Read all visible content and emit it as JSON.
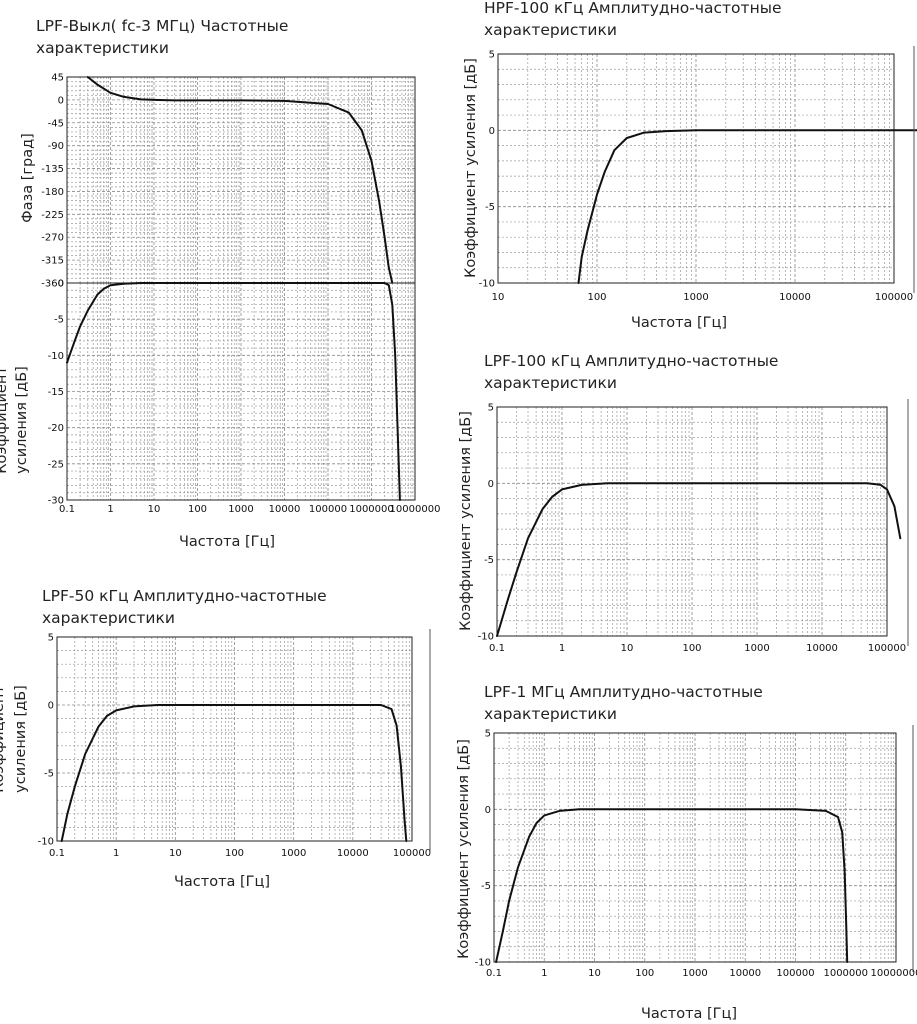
{
  "chart_data": [
    {
      "id": "lpf_off",
      "type": "line",
      "title_lines": [
        "LPF-Выкл( fc-3 МГц) Частотные",
        "характеристики"
      ],
      "xlabel": "Частота [Гц]",
      "x_log": true,
      "x_ticks": [
        "0.1",
        "1",
        "10",
        "100",
        "1000",
        "10000",
        "100000",
        "1000000",
        "10000000"
      ],
      "panels": [
        {
          "ylabel_lines": [
            "Фаза [град]"
          ],
          "ylim": [
            -360,
            45
          ],
          "y_ticks": [
            "45",
            "0",
            "-45",
            "-90",
            "-135",
            "-180",
            "-225",
            "-270",
            "-315",
            "-360"
          ],
          "series": [
            {
              "x": [
                0.3,
                0.5,
                1,
                2,
                5,
                10,
                30,
                100,
                1000,
                10000,
                100000,
                300000,
                600000,
                1000000,
                1500000,
                2000000,
                2500000,
                3000000
              ],
              "y": [
                45,
                30,
                14,
                6,
                1,
                0,
                -1,
                -1,
                -1,
                -2,
                -8,
                -25,
                -60,
                -120,
                -200,
                -270,
                -330,
                -360
              ]
            }
          ]
        },
        {
          "ylabel_lines": [
            "Коэффициент",
            "усиления [дБ]"
          ],
          "ylim": [
            -30,
            0
          ],
          "y_ticks": [
            "0",
            "-5",
            "-10",
            "-15",
            "-20",
            "-25",
            "-30"
          ],
          "series": [
            {
              "x": [
                0.1,
                0.15,
                0.2,
                0.3,
                0.5,
                0.7,
                1,
                2,
                5,
                10,
                100,
                1000,
                100000,
                1000000,
                2000000,
                2500000,
                3000000,
                3500000,
                4500000
              ],
              "y": [
                -11,
                -8,
                -6,
                -3.8,
                -1.6,
                -0.8,
                -0.3,
                -0.1,
                0,
                0,
                0,
                0,
                0,
                0,
                0,
                -0.3,
                -3,
                -10,
                -30
              ]
            }
          ]
        }
      ]
    },
    {
      "id": "hpf_100k",
      "type": "line",
      "title_lines": [
        "HPF-100 кГц Амплитудно-частотные",
        "характеристики"
      ],
      "xlabel": "Частота [Гц]",
      "x_log": true,
      "x_ticks": [
        "10",
        "100",
        "1000",
        "10000",
        "100000"
      ],
      "panels": [
        {
          "ylabel_lines": [
            "Коэффициент усиления [дБ]"
          ],
          "ylim": [
            -10,
            5
          ],
          "y_ticks": [
            "5",
            "0",
            "-5",
            "-10"
          ],
          "series": [
            {
              "x": [
                65,
                70,
                80,
                100,
                120,
                150,
                200,
                300,
                500,
                1000,
                10000,
                100000,
                200000
              ],
              "y": [
                -10,
                -8.3,
                -6.6,
                -4.2,
                -2.7,
                -1.3,
                -0.5,
                -0.15,
                -0.05,
                0,
                0,
                0,
                0
              ]
            }
          ]
        }
      ]
    },
    {
      "id": "lpf_100k",
      "type": "line",
      "title_lines": [
        "LPF-100 кГц Амплитудно-частотные",
        "характеристики"
      ],
      "xlabel": "",
      "x_log": true,
      "x_ticks": [
        "0.1",
        "1",
        "10",
        "100",
        "1000",
        "10000",
        "100000"
      ],
      "panels": [
        {
          "ylabel_lines": [
            "Коэффициент усиления [дБ]"
          ],
          "ylim": [
            -10,
            5
          ],
          "y_ticks": [
            "5",
            "0",
            "-5",
            "-10"
          ],
          "series": [
            {
              "x": [
                0.1,
                0.15,
                0.2,
                0.3,
                0.5,
                0.7,
                1,
                2,
                5,
                10,
                100,
                1000,
                10000,
                50000,
                80000,
                100000,
                130000,
                160000
              ],
              "y": [
                -10,
                -7.5,
                -5.8,
                -3.6,
                -1.7,
                -0.9,
                -0.4,
                -0.1,
                0,
                0,
                0,
                0,
                0,
                0,
                -0.1,
                -0.4,
                -1.5,
                -3.6
              ]
            }
          ]
        }
      ]
    },
    {
      "id": "lpf_50k",
      "type": "line",
      "title_lines": [
        "LPF-50 кГц Амплитудно-частотные",
        "характеристики"
      ],
      "xlabel": "Частота [Гц]",
      "x_log": true,
      "x_ticks": [
        "0.1",
        "1",
        "10",
        "100",
        "1000",
        "10000",
        "100000"
      ],
      "panels": [
        {
          "ylabel_lines": [
            "Коэффициент",
            "усиления [дБ]"
          ],
          "ylim": [
            -10,
            5
          ],
          "y_ticks": [
            "5",
            "0",
            "-5",
            "-10"
          ],
          "series": [
            {
              "x": [
                0.12,
                0.15,
                0.2,
                0.3,
                0.5,
                0.7,
                1,
                2,
                5,
                10,
                100,
                1000,
                10000,
                30000,
                45000,
                55000,
                65000,
                75000,
                80000
              ],
              "y": [
                -10,
                -8,
                -6,
                -3.6,
                -1.6,
                -0.8,
                -0.4,
                -0.1,
                0,
                0,
                0,
                0,
                0,
                0,
                -0.3,
                -1.5,
                -4.5,
                -8.5,
                -10
              ]
            }
          ]
        }
      ]
    },
    {
      "id": "lpf_1m",
      "type": "line",
      "title_lines": [
        "LPF-1 МГц Амплитудно-частотные",
        "характеристики"
      ],
      "xlabel": "Частота [Гц]",
      "x_log": true,
      "x_ticks": [
        "0.1",
        "1",
        "10",
        "100",
        "1000",
        "10000",
        "100000",
        "1000000",
        "10000000"
      ],
      "panels": [
        {
          "ylabel_lines": [
            "Коэффициент усиления [дБ]"
          ],
          "ylim": [
            -10,
            5
          ],
          "y_ticks": [
            "5",
            "0",
            "-5",
            "-10"
          ],
          "series": [
            {
              "x": [
                0.11,
                0.15,
                0.2,
                0.3,
                0.5,
                0.7,
                1,
                2,
                5,
                10,
                100,
                1000,
                10000,
                100000,
                400000,
                700000,
                850000,
                950000,
                1020000,
                1070000
              ],
              "y": [
                -10,
                -8,
                -6,
                -3.8,
                -1.8,
                -0.9,
                -0.4,
                -0.1,
                0,
                0,
                0,
                0,
                0,
                0,
                -0.1,
                -0.5,
                -1.5,
                -4,
                -7.5,
                -10
              ]
            }
          ]
        }
      ]
    }
  ]
}
